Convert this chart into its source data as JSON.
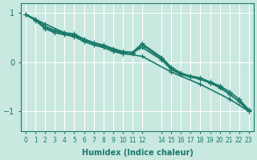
{
  "title": "",
  "xlabel": "Humidex (Indice chaleur)",
  "ylabel": "",
  "bg_color": "#c8e8e0",
  "grid_color": "#ffffff",
  "line_color": "#1a7a6a",
  "xlim": [
    -0.5,
    23.5
  ],
  "ylim": [
    -1.4,
    1.2
  ],
  "yticks": [
    -1,
    0,
    1
  ],
  "xticks": [
    0,
    1,
    2,
    3,
    4,
    5,
    6,
    7,
    8,
    9,
    10,
    11,
    12,
    14,
    15,
    16,
    17,
    18,
    19,
    20,
    21,
    22,
    23
  ],
  "xtick_labels": [
    "0",
    "1",
    "2",
    "3",
    "4",
    "5",
    "6",
    "7",
    "8",
    "9",
    "10",
    "11",
    "12",
    "14",
    "15",
    "16",
    "17",
    "18",
    "19",
    "20",
    "21",
    "22",
    "23"
  ],
  "lines": [
    {
      "x": [
        0,
        1,
        2,
        3,
        4,
        5,
        6,
        7,
        8,
        9,
        10,
        11,
        12,
        14,
        15,
        16,
        17,
        18,
        19,
        20,
        21,
        22,
        23
      ],
      "y": [
        0.97,
        0.88,
        0.73,
        0.65,
        0.6,
        0.58,
        0.47,
        0.4,
        0.35,
        0.28,
        0.22,
        0.2,
        0.3,
        0.05,
        -0.15,
        -0.25,
        -0.3,
        -0.35,
        -0.42,
        -0.5,
        -0.65,
        -0.8,
        -0.98
      ]
    },
    {
      "x": [
        0,
        1,
        2,
        3,
        4,
        5,
        6,
        7,
        8,
        9,
        10,
        11,
        12,
        14,
        15,
        16,
        17,
        18,
        19,
        20,
        21,
        22,
        23
      ],
      "y": [
        0.97,
        0.86,
        0.7,
        0.63,
        0.58,
        0.55,
        0.45,
        0.38,
        0.33,
        0.26,
        0.2,
        0.2,
        0.38,
        0.1,
        -0.1,
        -0.22,
        -0.28,
        -0.32,
        -0.4,
        -0.48,
        -0.6,
        -0.75,
        -0.97
      ]
    },
    {
      "x": [
        0,
        1,
        2,
        3,
        4,
        5,
        6,
        7,
        8,
        9,
        10,
        11,
        12,
        14,
        15,
        16,
        17,
        18,
        19,
        20,
        21,
        22,
        23
      ],
      "y": [
        0.97,
        0.85,
        0.68,
        0.6,
        0.56,
        0.52,
        0.42,
        0.35,
        0.3,
        0.22,
        0.17,
        0.17,
        0.35,
        0.07,
        -0.12,
        -0.23,
        -0.3,
        -0.33,
        -0.42,
        -0.52,
        -0.65,
        -0.8,
        -1.0
      ]
    },
    {
      "x": [
        0,
        2,
        4,
        6,
        8,
        10,
        12,
        15,
        18,
        21,
        23
      ],
      "y": [
        0.97,
        0.78,
        0.6,
        0.47,
        0.32,
        0.18,
        0.12,
        -0.2,
        -0.45,
        -0.75,
        -1.0
      ]
    }
  ],
  "marker": "+",
  "markersize": 4,
  "linewidth": 1.2
}
